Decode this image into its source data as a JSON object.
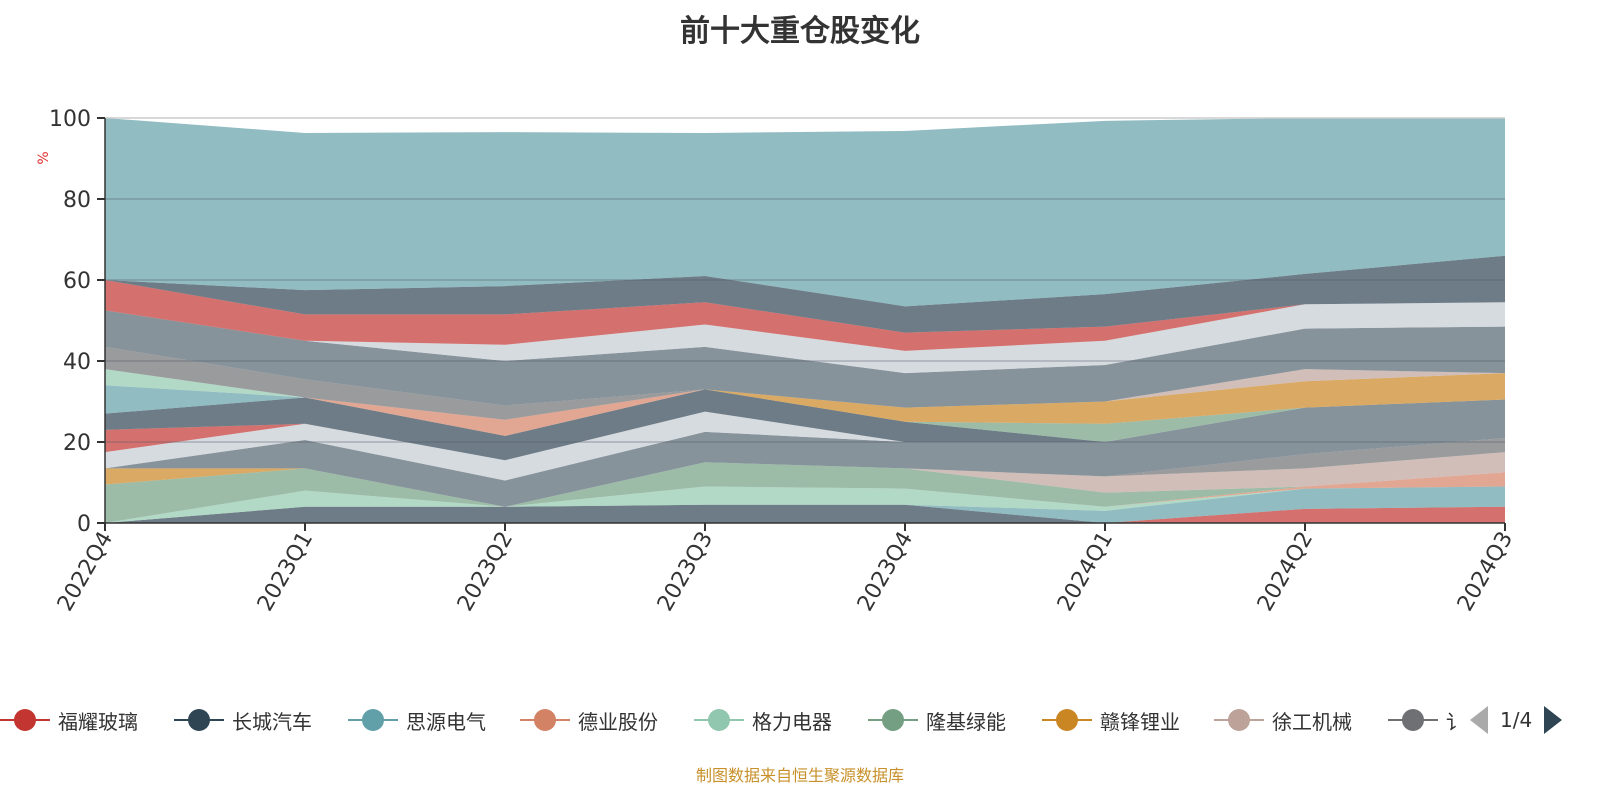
{
  "chart_data": {
    "type": "area",
    "title": "前十大重仓股变化",
    "ylabel": "%",
    "xlabel": "",
    "ylim": [
      0,
      100
    ],
    "yticks": [
      "0",
      "20",
      "40",
      "60",
      "80",
      "100"
    ],
    "categories": [
      "2022Q4",
      "2023Q1",
      "2023Q2",
      "2023Q3",
      "2023Q4",
      "2024Q1",
      "2024Q2",
      "2024Q3"
    ],
    "grid": true,
    "legend_position": "bottom",
    "palette": [
      "#c23531",
      "#2f4554",
      "#61a0a8",
      "#d48265",
      "#91c7ae",
      "#749f83",
      "#ca8622",
      "#bda29a",
      "#6e7074",
      "#546570",
      "#c4ccd3"
    ],
    "legend": [
      {
        "name": "福耀玻璃",
        "color": "#c23531"
      },
      {
        "name": "长城汽车",
        "color": "#2f4554"
      },
      {
        "name": "思源电气",
        "color": "#61a0a8"
      },
      {
        "name": "德业股份",
        "color": "#d48265"
      },
      {
        "name": "格力电器",
        "color": "#91c7ae"
      },
      {
        "name": "隆基绿能",
        "color": "#749f83"
      },
      {
        "name": "赣锋锂业",
        "color": "#ca8622"
      },
      {
        "name": "徐工机械",
        "color": "#bda29a"
      },
      {
        "name": "讠",
        "color": "#6e7074"
      }
    ],
    "bands": [
      {
        "color": "#2f4554",
        "lower": [
          0,
          0,
          0,
          0,
          0,
          0,
          0,
          0
        ],
        "upper": [
          0,
          4,
          4,
          4.5,
          4.5,
          0,
          0,
          0
        ]
      },
      {
        "color": "#c23531",
        "lower": [
          0,
          0,
          0,
          0,
          0,
          0,
          0,
          0
        ],
        "upper": [
          0,
          0,
          0,
          0,
          0,
          0,
          3.5,
          4
        ]
      },
      {
        "color": "#61a0a8",
        "lower": [
          0,
          4,
          4,
          4.5,
          4.5,
          0,
          3.5,
          4
        ],
        "upper": [
          0,
          4,
          4,
          4.5,
          4.5,
          3,
          8.5,
          9
        ]
      },
      {
        "color": "#91c7ae",
        "lower": [
          0,
          4,
          4,
          4.5,
          4.5,
          3,
          8.5,
          9
        ],
        "upper": [
          0,
          8,
          4,
          9,
          8.5,
          4,
          8.5,
          9
        ]
      },
      {
        "color": "#d48265",
        "lower": [
          0,
          8,
          4,
          9,
          8.5,
          4,
          8.5,
          9
        ],
        "upper": [
          0,
          8,
          4,
          9,
          8.5,
          4,
          9,
          12.5
        ]
      },
      {
        "color": "#749f83",
        "lower": [
          0,
          8,
          4,
          9,
          8.5,
          4,
          9,
          12.5
        ],
        "upper": [
          9.5,
          13.5,
          4,
          15,
          13.5,
          7.5,
          9,
          12.5
        ]
      },
      {
        "color": "#bda29a",
        "lower": [
          9.5,
          13.5,
          4,
          15,
          13.5,
          7.5,
          9,
          12.5
        ],
        "upper": [
          9.5,
          13.5,
          4,
          15,
          13.5,
          11.5,
          13.5,
          17.5
        ]
      },
      {
        "color": "#6e7074",
        "lower": [
          9.5,
          13.5,
          4,
          15,
          13.5,
          11.5,
          13.5,
          17.5
        ],
        "upper": [
          9.5,
          13.5,
          4,
          15,
          13.5,
          11.5,
          17,
          21
        ]
      },
      {
        "color": "#ca8622",
        "lower": [
          9.5,
          13.5,
          4,
          15,
          13.5,
          11.5,
          17,
          21
        ],
        "upper": [
          13.5,
          13.5,
          4,
          15,
          13.5,
          11.5,
          17,
          21
        ]
      },
      {
        "color": "#546570",
        "lower": [
          13.5,
          13.5,
          4,
          15,
          13.5,
          11.5,
          17,
          21
        ],
        "upper": [
          13.5,
          20.5,
          10.5,
          22.5,
          20,
          20,
          28.5,
          30.5
        ]
      },
      {
        "color": "#c4ccd3",
        "lower": [
          13.5,
          20.5,
          10.5,
          22.5,
          20,
          20,
          28.5,
          30.5
        ],
        "upper": [
          17.5,
          24.5,
          15.5,
          27.5,
          20,
          20,
          28.5,
          30.5
        ]
      },
      {
        "color": "#c23531",
        "lower": [
          17.5,
          24.5,
          15.5,
          27.5,
          20,
          20,
          28.5,
          30.5
        ],
        "upper": [
          23,
          24.5,
          15.5,
          27.5,
          20,
          20,
          28.5,
          30.5
        ]
      },
      {
        "color": "#2f4554",
        "lower": [
          23,
          24.5,
          15.5,
          27.5,
          20,
          20,
          28.5,
          30.5
        ],
        "upper": [
          27,
          31,
          21.5,
          33,
          25,
          20,
          28.5,
          30.5
        ]
      },
      {
        "color": "#61a0a8",
        "lower": [
          27,
          31,
          21.5,
          33,
          25,
          20,
          28.5,
          30.5
        ],
        "upper": [
          34,
          31,
          21.5,
          33,
          25,
          20,
          28.5,
          30.5
        ]
      },
      {
        "color": "#749f83",
        "lower": [
          34,
          31,
          21.5,
          33,
          25,
          20,
          28.5,
          30.5
        ],
        "upper": [
          34,
          31,
          21.5,
          33,
          25,
          24.5,
          28.5,
          30.5
        ]
      },
      {
        "color": "#91c7ae",
        "lower": [
          34,
          31,
          21.5,
          33,
          25,
          24.5,
          28.5,
          30.5
        ],
        "upper": [
          38,
          31,
          21.5,
          33,
          25,
          24.5,
          28.5,
          30.5
        ]
      },
      {
        "color": "#ca8622",
        "lower": [
          38,
          31,
          21.5,
          33,
          25,
          24.5,
          28.5,
          30.5
        ],
        "upper": [
          38,
          31,
          21.5,
          33,
          28.5,
          30,
          35,
          37
        ]
      },
      {
        "color": "#d48265",
        "lower": [
          38,
          31,
          21.5,
          33,
          28.5,
          30,
          35,
          37
        ],
        "upper": [
          38,
          31,
          25.5,
          33,
          28.5,
          30,
          35,
          37
        ]
      },
      {
        "color": "#6e7074",
        "lower": [
          38,
          31,
          25.5,
          33,
          28.5,
          30,
          35,
          37
        ],
        "upper": [
          43.5,
          35.5,
          29,
          33,
          28.5,
          30,
          35,
          37
        ]
      },
      {
        "color": "#bda29a",
        "lower": [
          43.5,
          35.5,
          29,
          33,
          28.5,
          30,
          35,
          37
        ],
        "upper": [
          43.5,
          35.5,
          29,
          33,
          28.5,
          30,
          38,
          37
        ]
      },
      {
        "color": "#546570",
        "lower": [
          43.5,
          35.5,
          29,
          33,
          28.5,
          30,
          38,
          37
        ],
        "upper": [
          52.5,
          45,
          40,
          43.5,
          37,
          39,
          48,
          48.5
        ]
      },
      {
        "color": "#c4ccd3",
        "lower": [
          52.5,
          45,
          40,
          43.5,
          37,
          39,
          48,
          48.5
        ],
        "upper": [
          52.5,
          45,
          44,
          49,
          42.5,
          45,
          54,
          54.5
        ]
      },
      {
        "color": "#c23531",
        "lower": [
          52.5,
          45,
          44,
          49,
          42.5,
          45,
          54,
          54.5
        ],
        "upper": [
          60,
          51.5,
          51.5,
          54.5,
          47,
          48.5,
          54,
          54.5
        ]
      },
      {
        "color": "#2f4554",
        "lower": [
          60,
          51.5,
          51.5,
          54.5,
          47,
          48.5,
          54,
          54.5
        ],
        "upper": [
          60,
          57.5,
          58.5,
          61,
          53.5,
          56.5,
          61.5,
          66
        ]
      },
      {
        "color": "#61a0a8",
        "lower": [
          60,
          57.5,
          58.5,
          61,
          53.5,
          56.5,
          61.5,
          66
        ],
        "upper": [
          100,
          96.3,
          96.5,
          96.3,
          96.8,
          99.3,
          100,
          100
        ]
      }
    ]
  },
  "pager": {
    "text": "1/4"
  },
  "footer": "制图数据来自恒生聚源数据库"
}
